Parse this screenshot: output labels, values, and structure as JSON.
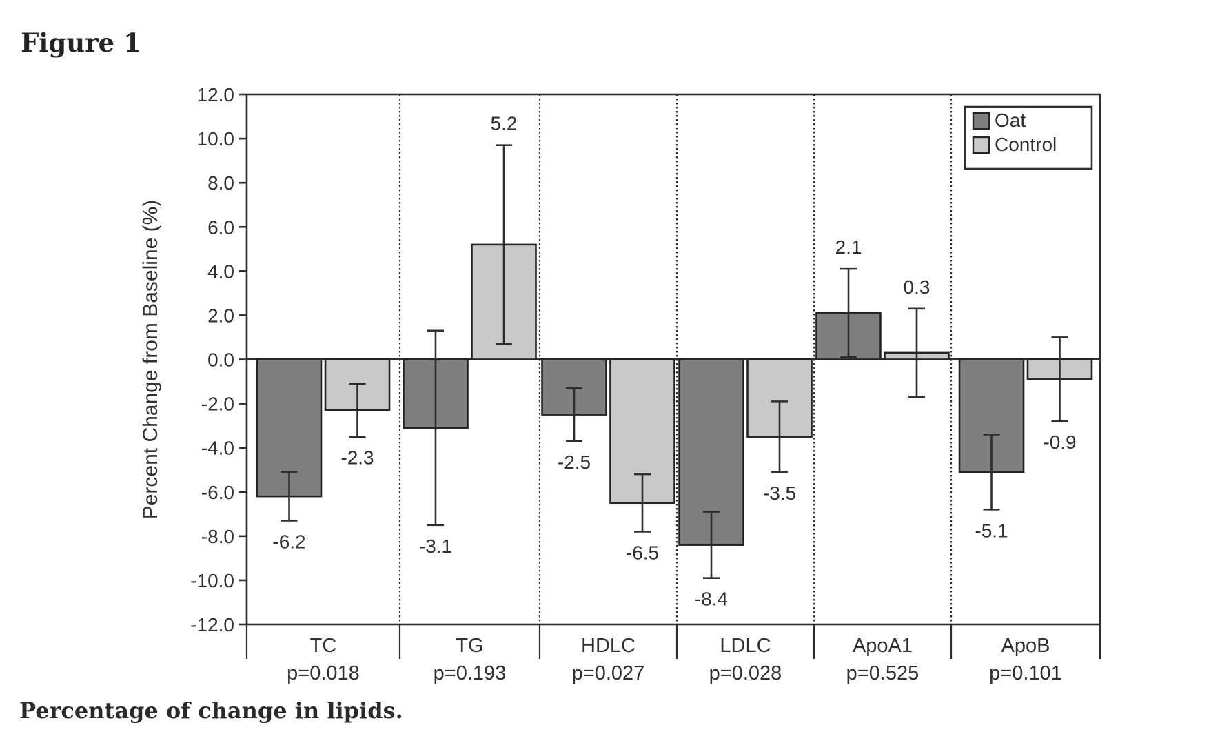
{
  "figure": {
    "label": "Figure 1",
    "caption": "Percentage of change in lipids."
  },
  "chart_data": {
    "type": "bar",
    "title": "",
    "ylabel": "Percent Change from Baseline (%)",
    "ylim": [
      -12.0,
      12.0
    ],
    "ytick_step": 2.0,
    "grid": false,
    "legend_position": "top-right",
    "group_separator_style": "dotted",
    "axis_color": "#2e2e2e",
    "categories": [
      {
        "label": "TC",
        "p_value": "p=0.018"
      },
      {
        "label": "TG",
        "p_value": "p=0.193"
      },
      {
        "label": "HDLC",
        "p_value": "p=0.027"
      },
      {
        "label": "LDLC",
        "p_value": "p=0.028"
      },
      {
        "label": "ApoA1",
        "p_value": "p=0.525"
      },
      {
        "label": "ApoB",
        "p_value": "p=0.101"
      }
    ],
    "series": [
      {
        "name": "Oat",
        "color": "#7f7f7f",
        "values": [
          -6.2,
          -3.1,
          -2.5,
          -8.4,
          2.1,
          -5.1
        ],
        "errors": [
          1.1,
          4.4,
          1.2,
          1.5,
          2.0,
          1.7
        ]
      },
      {
        "name": "Control",
        "color": "#c9c9c9",
        "values": [
          -2.3,
          5.2,
          -6.5,
          -3.5,
          0.3,
          -0.9
        ],
        "errors": [
          1.2,
          4.5,
          1.3,
          1.6,
          2.0,
          1.9
        ]
      }
    ]
  }
}
